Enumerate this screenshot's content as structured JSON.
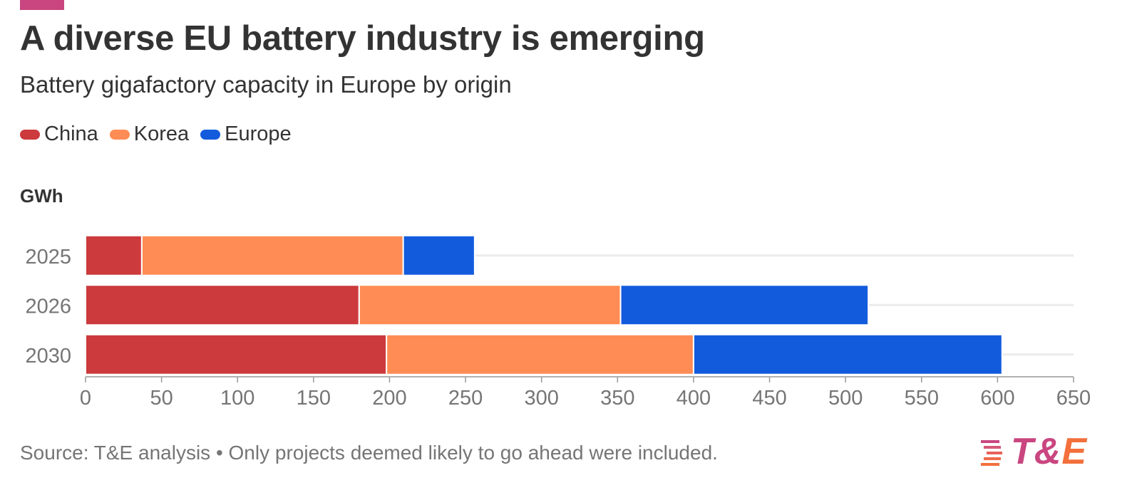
{
  "title": "A diverse EU battery industry is emerging",
  "subtitle": "Battery gigafactory capacity in Europe by origin",
  "unit": "GWh",
  "footer": "Source: T&E analysis • Only projects deemed likely to go ahead were included.",
  "logo": {
    "part1": "T&",
    "part2": "E"
  },
  "colors": {
    "accent": "#c94680",
    "china": "#cc3a3d",
    "korea": "#ff8c54",
    "europe": "#135bdd",
    "grid": "#ebebeb",
    "axis_text": "#757575"
  },
  "chart_data": {
    "type": "bar",
    "orientation": "horizontal",
    "stacked": true,
    "categories": [
      "2025",
      "2026",
      "2030"
    ],
    "series": [
      {
        "name": "China",
        "color": "#cc3a3d",
        "values": [
          37,
          180,
          198
        ]
      },
      {
        "name": "Korea",
        "color": "#ff8c54",
        "values": [
          172,
          172,
          202
        ]
      },
      {
        "name": "Europe",
        "color": "#135bdd",
        "values": [
          47,
          163,
          203
        ]
      }
    ],
    "xlim": [
      0,
      650
    ],
    "xticks": [
      0,
      50,
      100,
      150,
      200,
      250,
      300,
      350,
      400,
      450,
      500,
      550,
      600,
      650
    ],
    "xlabel": "",
    "ylabel": "GWh",
    "legend": "top-left",
    "grid": true
  }
}
